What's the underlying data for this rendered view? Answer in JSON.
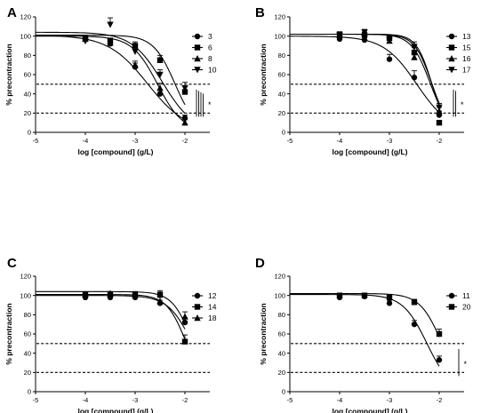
{
  "chart_data": [
    {
      "panel": "A",
      "type": "line",
      "xlabel": "log [compound] (g/L)",
      "ylabel": "% precontraction",
      "xticks": [
        -5,
        -4,
        -3,
        -2
      ],
      "yticks": [
        0,
        20,
        40,
        60,
        80,
        100,
        120
      ],
      "xlim": [
        -5,
        -1.5
      ],
      "ylim": [
        0,
        120
      ],
      "reference_lines": [
        20,
        50
      ],
      "significance_label": "*",
      "legend_position": "top-right",
      "series": [
        {
          "name": "3",
          "marker": "circle",
          "top": 100,
          "ec50_log": -2.55,
          "hill": 1.7,
          "points": [
            {
              "x": -4,
              "y": 97,
              "err": 2
            },
            {
              "x": -3.5,
              "y": 92,
              "err": 3
            },
            {
              "x": -3,
              "y": 68,
              "err": 4
            },
            {
              "x": -2.5,
              "y": 40,
              "err": 4
            },
            {
              "x": -2,
              "y": 15,
              "err": 3
            }
          ]
        },
        {
          "name": "6",
          "marker": "square",
          "top": 101,
          "ec50_log": -2.2,
          "hill": 2.0,
          "points": [
            {
              "x": -4,
              "y": 98,
              "err": 2
            },
            {
              "x": -3.5,
              "y": 95,
              "err": 3
            },
            {
              "x": -3,
              "y": 90,
              "err": 4
            },
            {
              "x": -2.5,
              "y": 75,
              "err": 5
            },
            {
              "x": -2,
              "y": 42,
              "err": 6
            }
          ]
        },
        {
          "name": "8",
          "marker": "triangle-up",
          "top": 101,
          "ec50_log": -2.75,
          "hill": 1.1,
          "points": [
            {
              "x": -4,
              "y": 97,
              "err": 3
            },
            {
              "x": -3.5,
              "y": 93,
              "err": 3
            },
            {
              "x": -3,
              "y": 70,
              "err": 4
            },
            {
              "x": -2.5,
              "y": 46,
              "err": 5
            },
            {
              "x": -2,
              "y": 10,
              "err": 3
            }
          ]
        },
        {
          "name": "10",
          "marker": "triangle-down",
          "top": 104,
          "ec50_log": -2.45,
          "hill": 1.4,
          "points": [
            {
              "x": -4,
              "y": 95,
              "err": 4
            },
            {
              "x": -3.5,
              "y": 112,
              "err": 7
            },
            {
              "x": -3,
              "y": 84,
              "err": 6
            },
            {
              "x": -2.5,
              "y": 60,
              "err": 5
            },
            {
              "x": -2,
              "y": 46,
              "err": 6
            }
          ]
        }
      ]
    },
    {
      "panel": "B",
      "type": "line",
      "xlabel": "log [compound] (g/L)",
      "ylabel": "% precontraction",
      "xticks": [
        -5,
        -4,
        -3,
        -2
      ],
      "yticks": [
        0,
        20,
        40,
        60,
        80,
        100,
        120
      ],
      "xlim": [
        -5,
        -1.5
      ],
      "ylim": [
        0,
        120
      ],
      "reference_lines": [
        20,
        50
      ],
      "significance_label": "*",
      "legend_position": "top-right",
      "series": [
        {
          "name": "13",
          "marker": "circle",
          "top": 100,
          "ec50_log": -2.45,
          "hill": 1.3,
          "points": [
            {
              "x": -4,
              "y": 97,
              "err": 2
            },
            {
              "x": -3.5,
              "y": 96,
              "err": 3
            },
            {
              "x": -3,
              "y": 76,
              "err": 5
            },
            {
              "x": -2.5,
              "y": 57,
              "err": 7
            },
            {
              "x": -2,
              "y": 18,
              "err": 4
            }
          ]
        },
        {
          "name": "15",
          "marker": "square",
          "top": 102,
          "ec50_log": -2.15,
          "hill": 2.8,
          "points": [
            {
              "x": -4,
              "y": 102,
              "err": 2
            },
            {
              "x": -3.5,
              "y": 101,
              "err": 3
            },
            {
              "x": -3,
              "y": 98,
              "err": 3
            },
            {
              "x": -2.5,
              "y": 83,
              "err": 5
            },
            {
              "x": -2,
              "y": 10,
              "err": 2
            }
          ]
        },
        {
          "name": "16",
          "marker": "triangle-up",
          "top": 102,
          "ec50_log": -2.15,
          "hill": 2.5,
          "points": [
            {
              "x": -4,
              "y": 101,
              "err": 2
            },
            {
              "x": -3.5,
              "y": 103,
              "err": 3
            },
            {
              "x": -3,
              "y": 95,
              "err": 4
            },
            {
              "x": -2.5,
              "y": 78,
              "err": 5
            },
            {
              "x": -2,
              "y": 22,
              "err": 4
            }
          ]
        },
        {
          "name": "17",
          "marker": "triangle-down",
          "top": 102,
          "ec50_log": -2.18,
          "hill": 2.3,
          "points": [
            {
              "x": -4,
              "y": 101,
              "err": 3
            },
            {
              "x": -3.5,
              "y": 104,
              "err": 3
            },
            {
              "x": -3,
              "y": 96,
              "err": 4
            },
            {
              "x": -2.5,
              "y": 89,
              "err": 5
            },
            {
              "x": -2,
              "y": 26,
              "err": 4
            }
          ]
        }
      ]
    },
    {
      "panel": "C",
      "type": "line",
      "xlabel": "log [compound] (g/L)",
      "ylabel": "% precontraction",
      "xticks": [
        -5,
        -4,
        -3,
        -2
      ],
      "yticks": [
        0,
        20,
        40,
        60,
        80,
        100,
        120
      ],
      "xlim": [
        -5,
        -1.5
      ],
      "ylim": [
        0,
        120
      ],
      "reference_lines": [
        20,
        50
      ],
      "significance_label": "",
      "legend_position": "top-right",
      "series": [
        {
          "name": "12",
          "marker": "circle",
          "top": 100,
          "ec50_log": -1.85,
          "hill": 1.8,
          "points": [
            {
              "x": -4,
              "y": 98,
              "err": 2
            },
            {
              "x": -3.5,
              "y": 98,
              "err": 2
            },
            {
              "x": -3,
              "y": 98,
              "err": 2
            },
            {
              "x": -2.5,
              "y": 92,
              "err": 3
            },
            {
              "x": -2,
              "y": 72,
              "err": 5
            }
          ]
        },
        {
          "name": "14",
          "marker": "square",
          "top": 101,
          "ec50_log": -1.97,
          "hill": 2.2,
          "points": [
            {
              "x": -4,
              "y": 101,
              "err": 2
            },
            {
              "x": -3.5,
              "y": 101,
              "err": 2
            },
            {
              "x": -3,
              "y": 101,
              "err": 3
            },
            {
              "x": -2.5,
              "y": 101,
              "err": 4
            },
            {
              "x": -2,
              "y": 52,
              "err": 7
            }
          ]
        },
        {
          "name": "18",
          "marker": "triangle-up",
          "top": 104,
          "ec50_log": -1.85,
          "hill": 2.2,
          "points": [
            {
              "x": -4,
              "y": 101,
              "err": 2
            },
            {
              "x": -3.5,
              "y": 102,
              "err": 2
            },
            {
              "x": -3,
              "y": 101,
              "err": 3
            },
            {
              "x": -2.5,
              "y": 94,
              "err": 4
            },
            {
              "x": -2,
              "y": 78,
              "err": 5
            }
          ]
        }
      ]
    },
    {
      "panel": "D",
      "type": "line",
      "xlabel": "log [compound] (g/L)",
      "ylabel": "% precontraction",
      "xticks": [
        -5,
        -4,
        -3,
        -2
      ],
      "yticks": [
        0,
        20,
        40,
        60,
        80,
        100,
        120
      ],
      "xlim": [
        -5,
        -1.5
      ],
      "ylim": [
        0,
        120
      ],
      "reference_lines": [
        20,
        50
      ],
      "significance_label": "*",
      "legend_position": "top-right",
      "series": [
        {
          "name": "11",
          "marker": "circle",
          "top": 101,
          "ec50_log": -2.25,
          "hill": 1.8,
          "points": [
            {
              "x": -4,
              "y": 98,
              "err": 2
            },
            {
              "x": -3.5,
              "y": 99,
              "err": 2
            },
            {
              "x": -3,
              "y": 92,
              "err": 3
            },
            {
              "x": -2.5,
              "y": 70,
              "err": 4
            },
            {
              "x": -2,
              "y": 33,
              "err": 4
            }
          ]
        },
        {
          "name": "20",
          "marker": "square",
          "top": 102,
          "ec50_log": -1.95,
          "hill": 2.0,
          "points": [
            {
              "x": -4,
              "y": 100,
              "err": 2
            },
            {
              "x": -3.5,
              "y": 100,
              "err": 2
            },
            {
              "x": -3,
              "y": 98,
              "err": 2
            },
            {
              "x": -2.5,
              "y": 93,
              "err": 3
            },
            {
              "x": -2,
              "y": 60,
              "err": 5
            }
          ]
        }
      ]
    }
  ]
}
